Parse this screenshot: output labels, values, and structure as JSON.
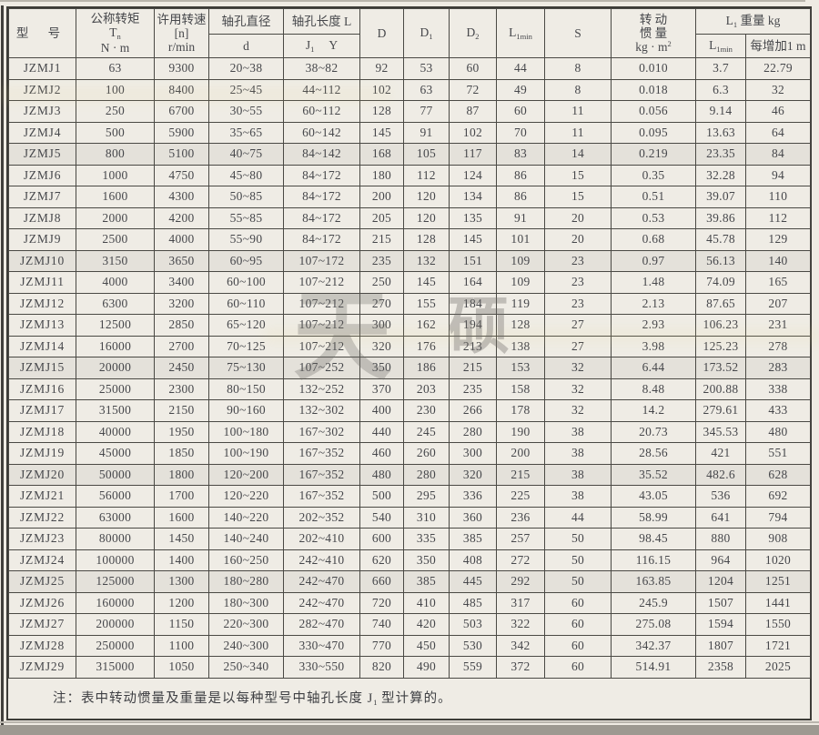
{
  "watermark": [
    "天",
    "硕"
  ],
  "note": {
    "prefix": "注：",
    "body": "表中转动惯量及重量是以每种型号中轴孔长度 J",
    "sub": "1",
    "tail": " 型计算的。"
  },
  "table": {
    "header": {
      "model": "型 号",
      "torque_l1": "公称转矩",
      "torque_l2_main": "T",
      "torque_l2_sub": "n",
      "torque_l3": "N · m",
      "speed_l1": "许用转速",
      "speed_l2": "[n]",
      "speed_l3": "r/min",
      "bore_dia_title": "轴孔直径",
      "bore_dia_sub": "d",
      "bore_len_title": "轴孔长度 L",
      "bore_len_j": "J",
      "bore_len_j_sub": "1",
      "bore_len_y": "Y",
      "col_D": "D",
      "col_D1_main": "D",
      "col_D1_sub": "1",
      "col_D2_main": "D",
      "col_D2_sub": "2",
      "col_L1min_main": "L",
      "col_L1min_sub": "1min",
      "col_S": "S",
      "inertia_l1": "转 动",
      "inertia_l2": "惯 量",
      "inertia_l3_main": "kg · m",
      "inertia_l3_sup": "2",
      "weight_title_main": "L",
      "weight_title_sub": "1",
      "weight_title_tail": " 重量  kg",
      "weight_c1_main": "L",
      "weight_c1_sub": "1min",
      "weight_c2": "每增加1 m"
    },
    "rows": [
      [
        "JZMJ1",
        "63",
        "9300",
        "20~38",
        "38~82",
        "92",
        "53",
        "60",
        "44",
        "8",
        "0.010",
        "3.7",
        "22.79"
      ],
      [
        "JZMJ2",
        "100",
        "8400",
        "25~45",
        "44~112",
        "102",
        "63",
        "72",
        "49",
        "8",
        "0.018",
        "6.3",
        "32"
      ],
      [
        "JZMJ3",
        "250",
        "6700",
        "30~55",
        "60~112",
        "128",
        "77",
        "87",
        "60",
        "11",
        "0.056",
        "9.14",
        "46"
      ],
      [
        "JZMJ4",
        "500",
        "5900",
        "35~65",
        "60~142",
        "145",
        "91",
        "102",
        "70",
        "11",
        "0.095",
        "13.63",
        "64"
      ],
      [
        "JZMJ5",
        "800",
        "5100",
        "40~75",
        "84~142",
        "168",
        "105",
        "117",
        "83",
        "14",
        "0.219",
        "23.35",
        "84"
      ],
      [
        "JZMJ6",
        "1000",
        "4750",
        "45~80",
        "84~172",
        "180",
        "112",
        "124",
        "86",
        "15",
        "0.35",
        "32.28",
        "94"
      ],
      [
        "JZMJ7",
        "1600",
        "4300",
        "50~85",
        "84~172",
        "200",
        "120",
        "134",
        "86",
        "15",
        "0.51",
        "39.07",
        "110"
      ],
      [
        "JZMJ8",
        "2000",
        "4200",
        "55~85",
        "84~172",
        "205",
        "120",
        "135",
        "91",
        "20",
        "0.53",
        "39.86",
        "112"
      ],
      [
        "JZMJ9",
        "2500",
        "4000",
        "55~90",
        "84~172",
        "215",
        "128",
        "145",
        "101",
        "20",
        "0.68",
        "45.78",
        "129"
      ],
      [
        "JZMJ10",
        "3150",
        "3650",
        "60~95",
        "107~172",
        "235",
        "132",
        "151",
        "109",
        "23",
        "0.97",
        "56.13",
        "140"
      ],
      [
        "JZMJ11",
        "4000",
        "3400",
        "60~100",
        "107~212",
        "250",
        "145",
        "164",
        "109",
        "23",
        "1.48",
        "74.09",
        "165"
      ],
      [
        "JZMJ12",
        "6300",
        "3200",
        "60~110",
        "107~212",
        "270",
        "155",
        "184",
        "119",
        "23",
        "2.13",
        "87.65",
        "207"
      ],
      [
        "JZMJ13",
        "12500",
        "2850",
        "65~120",
        "107~212",
        "300",
        "162",
        "194",
        "128",
        "27",
        "2.93",
        "106.23",
        "231"
      ],
      [
        "JZMJ14",
        "16000",
        "2700",
        "70~125",
        "107~212",
        "320",
        "176",
        "213",
        "138",
        "27",
        "3.98",
        "125.23",
        "278"
      ],
      [
        "JZMJ15",
        "20000",
        "2450",
        "75~130",
        "107~252",
        "350",
        "186",
        "215",
        "153",
        "32",
        "6.44",
        "173.52",
        "283"
      ],
      [
        "JZMJ16",
        "25000",
        "2300",
        "80~150",
        "132~252",
        "370",
        "203",
        "235",
        "158",
        "32",
        "8.48",
        "200.88",
        "338"
      ],
      [
        "JZMJ17",
        "31500",
        "2150",
        "90~160",
        "132~302",
        "400",
        "230",
        "266",
        "178",
        "32",
        "14.2",
        "279.61",
        "433"
      ],
      [
        "JZMJ18",
        "40000",
        "1950",
        "100~180",
        "167~302",
        "440",
        "245",
        "280",
        "190",
        "38",
        "20.73",
        "345.53",
        "480"
      ],
      [
        "JZMJ19",
        "45000",
        "1850",
        "100~190",
        "167~352",
        "460",
        "260",
        "300",
        "200",
        "38",
        "28.56",
        "421",
        "551"
      ],
      [
        "JZMJ20",
        "50000",
        "1800",
        "120~200",
        "167~352",
        "480",
        "280",
        "320",
        "215",
        "38",
        "35.52",
        "482.6",
        "628"
      ],
      [
        "JZMJ21",
        "56000",
        "1700",
        "120~220",
        "167~352",
        "500",
        "295",
        "336",
        "225",
        "38",
        "43.05",
        "536",
        "692"
      ],
      [
        "JZMJ22",
        "63000",
        "1600",
        "140~220",
        "202~352",
        "540",
        "310",
        "360",
        "236",
        "44",
        "58.99",
        "641",
        "794"
      ],
      [
        "JZMJ23",
        "80000",
        "1450",
        "140~240",
        "202~410",
        "600",
        "335",
        "385",
        "257",
        "50",
        "98.45",
        "880",
        "908"
      ],
      [
        "JZMJ24",
        "100000",
        "1400",
        "160~250",
        "242~410",
        "620",
        "350",
        "408",
        "272",
        "50",
        "116.15",
        "964",
        "1020"
      ],
      [
        "JZMJ25",
        "125000",
        "1300",
        "180~280",
        "242~470",
        "660",
        "385",
        "445",
        "292",
        "50",
        "163.85",
        "1204",
        "1251"
      ],
      [
        "JZMJ26",
        "160000",
        "1200",
        "180~300",
        "242~470",
        "720",
        "410",
        "485",
        "317",
        "60",
        "245.9",
        "1507",
        "1441"
      ],
      [
        "JZMJ27",
        "200000",
        "1150",
        "220~300",
        "282~470",
        "740",
        "420",
        "503",
        "322",
        "60",
        "275.08",
        "1594",
        "1550"
      ],
      [
        "JZMJ28",
        "250000",
        "1100",
        "240~300",
        "330~470",
        "770",
        "450",
        "530",
        "342",
        "60",
        "342.37",
        "1807",
        "1721"
      ],
      [
        "JZMJ29",
        "315000",
        "1050",
        "250~340",
        "330~550",
        "820",
        "490",
        "559",
        "372",
        "60",
        "514.91",
        "2358",
        "2025"
      ]
    ]
  }
}
